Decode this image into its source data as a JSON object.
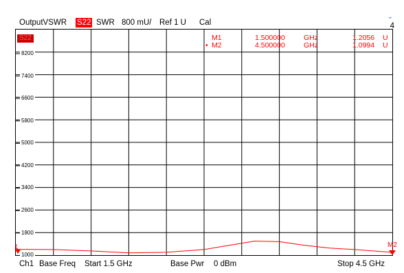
{
  "header": {
    "title": "OutputVSWR",
    "param": "S22",
    "format": "SWR",
    "scale": "800 mU/",
    "ref": "Ref 1 U",
    "cal": "Cal",
    "channel_number": "4"
  },
  "trace": {
    "tag": "S22",
    "color": "#ff0000"
  },
  "markers": [
    {
      "name": "M1",
      "freq": "1.500000",
      "freq_unit": "GHz",
      "value": "1.2056",
      "value_unit": "U",
      "active": false
    },
    {
      "name": "M2",
      "freq": "4.500000",
      "freq_unit": "GHz",
      "value": "1.0994",
      "value_unit": "U",
      "active": true
    }
  ],
  "marker_flags": {
    "m1": "1",
    "m2": "M2"
  },
  "yaxis": {
    "labels": [
      "8200",
      "7400",
      "6600",
      "5800",
      "5000",
      "4200",
      "3400",
      "2600",
      "1800",
      "1000"
    ]
  },
  "footer": {
    "channel": "Ch1",
    "sweep_mode": "Base Freq",
    "start": "Start 1.5 GHz",
    "power_mode": "Base Pwr",
    "power": "0 dBm",
    "stop": "Stop 4.5 GHz"
  },
  "chart_data": {
    "type": "line",
    "x_range": [
      1.5,
      4.5
    ],
    "x_unit": "GHz",
    "y_labels": [
      1000,
      1800,
      2600,
      3400,
      4200,
      5000,
      5800,
      6600,
      7400,
      8200
    ],
    "grid": true,
    "series": [
      {
        "x": [
          1.5,
          1.8,
          2.1,
          2.4,
          2.7,
          3.0,
          3.2,
          3.4,
          3.6,
          3.8,
          4.0,
          4.2,
          4.5
        ],
        "y": [
          1206,
          1200,
          1150,
          1080,
          1100,
          1200,
          1350,
          1500,
          1480,
          1350,
          1250,
          1200,
          1099
        ]
      }
    ]
  }
}
